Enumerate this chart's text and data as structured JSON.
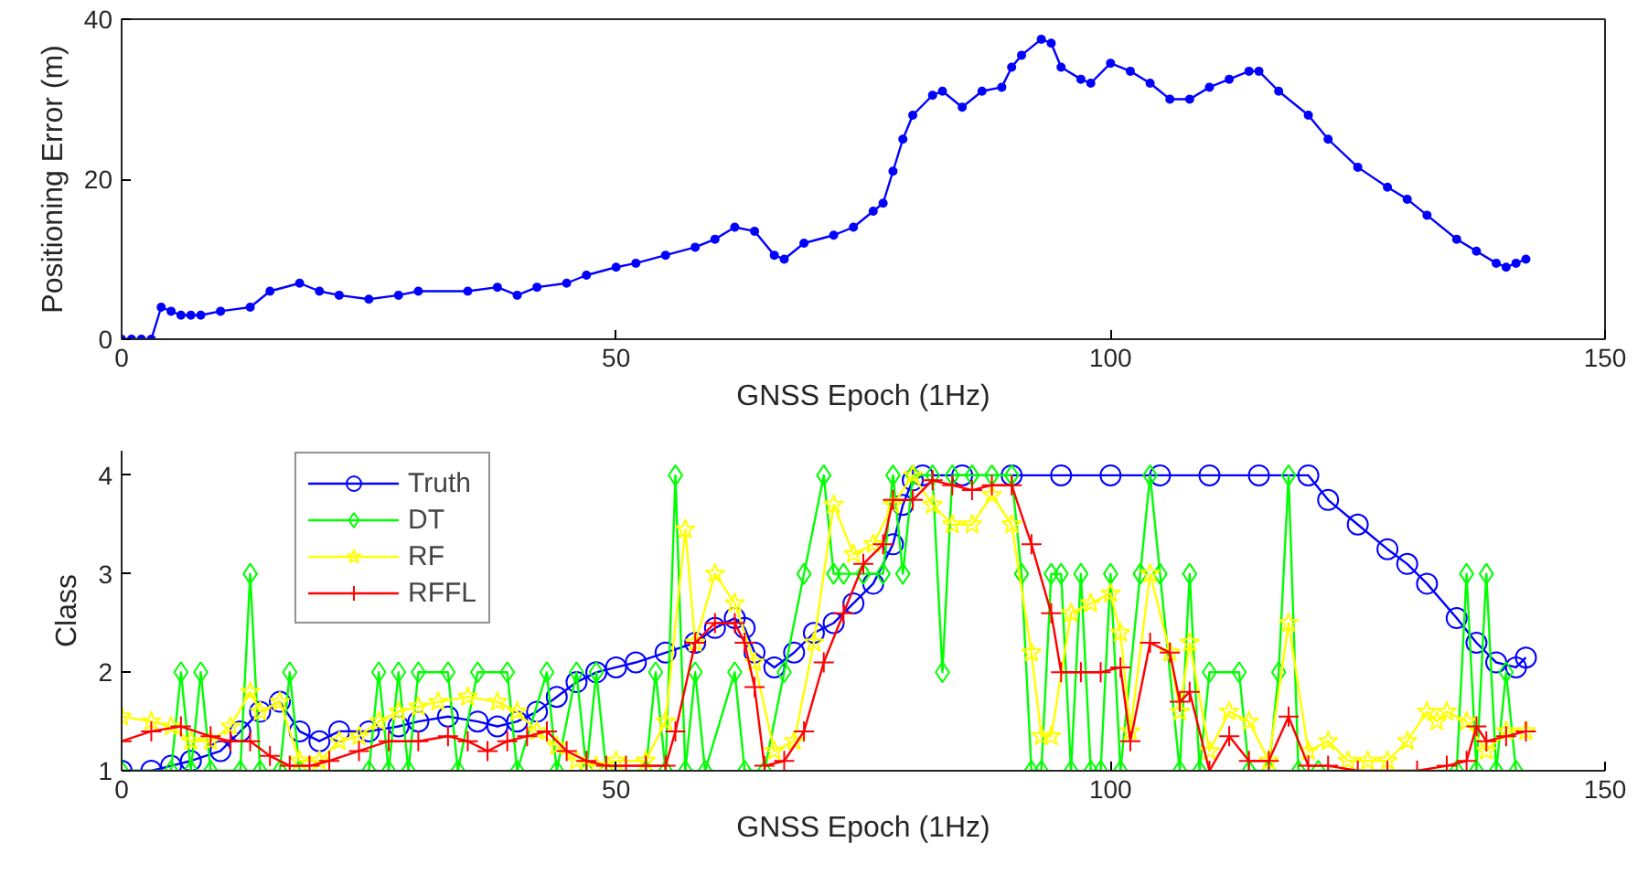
{
  "chart_data": [
    {
      "type": "line",
      "xlabel": "GNSS Epoch (1Hz)",
      "ylabel": "Positioning Error (m)",
      "xlim": [
        0,
        150
      ],
      "ylim": [
        0,
        40
      ],
      "xticks": [
        0,
        50,
        100,
        150
      ],
      "yticks": [
        0,
        20,
        40
      ],
      "grid": false,
      "marker": "circle",
      "series": [
        {
          "color": "#0000ff",
          "x": [
            0,
            1,
            2,
            3,
            4,
            5,
            6,
            7,
            8,
            10,
            13,
            15,
            18,
            20,
            22,
            25,
            28,
            30,
            35,
            38,
            40,
            42,
            45,
            47,
            50,
            52,
            55,
            58,
            60,
            62,
            64,
            66,
            67,
            69,
            72,
            74,
            76,
            77,
            78,
            79,
            80,
            82,
            83,
            85,
            87,
            89,
            90,
            91,
            93,
            94,
            95,
            97,
            98,
            100,
            102,
            104,
            106,
            108,
            110,
            112,
            114,
            115,
            117,
            120,
            122,
            125,
            128,
            130,
            132,
            135,
            137,
            139,
            140,
            141,
            142
          ],
          "values": [
            0,
            0,
            0,
            0,
            4,
            3.5,
            3,
            3,
            3,
            3.5,
            4,
            6,
            7,
            6,
            5.5,
            5,
            5.5,
            6,
            6,
            6.5,
            5.5,
            6.5,
            7,
            8,
            9,
            9.5,
            10.5,
            11.5,
            12.5,
            14,
            13.5,
            10.5,
            10,
            12,
            13,
            14,
            16,
            17,
            21,
            25,
            28,
            30.5,
            31,
            29,
            31,
            31.5,
            34,
            35.5,
            37.5,
            37,
            34,
            32.5,
            32,
            34.5,
            33.5,
            32,
            30,
            30,
            31.5,
            32.5,
            33.5,
            33.5,
            31,
            28,
            25,
            21.5,
            19,
            17.5,
            15.5,
            12.5,
            11,
            9.5,
            9,
            9.5,
            10
          ]
        }
      ]
    },
    {
      "type": "line",
      "xlabel": "GNSS Epoch (1Hz)",
      "ylabel": "Class",
      "xlim": [
        0,
        150
      ],
      "ylim": [
        1,
        4.25
      ],
      "xticks": [
        0,
        50,
        100,
        150
      ],
      "yticks": [
        1,
        2,
        3,
        4
      ],
      "grid": false,
      "legend": "top left",
      "series": [
        {
          "name": "Truth",
          "color": "#0000ff",
          "marker": "circle",
          "x": [
            0,
            3,
            5,
            7,
            10,
            12,
            14,
            16,
            18,
            20,
            22,
            25,
            28,
            30,
            33,
            36,
            38,
            40,
            42,
            44,
            46,
            48,
            50,
            52,
            55,
            58,
            60,
            62,
            63,
            64,
            66,
            68,
            70,
            72,
            74,
            76,
            78,
            79,
            80,
            81,
            85,
            90,
            95,
            100,
            105,
            110,
            115,
            120,
            122,
            125,
            128,
            130,
            132,
            135,
            137,
            139,
            141,
            142
          ],
          "values": [
            1.0,
            1.0,
            1.05,
            1.1,
            1.2,
            1.4,
            1.6,
            1.7,
            1.4,
            1.3,
            1.4,
            1.4,
            1.45,
            1.5,
            1.55,
            1.5,
            1.45,
            1.5,
            1.6,
            1.75,
            1.9,
            2.0,
            2.05,
            2.1,
            2.2,
            2.3,
            2.45,
            2.55,
            2.45,
            2.2,
            2.05,
            2.2,
            2.4,
            2.5,
            2.7,
            2.9,
            3.3,
            3.7,
            3.95,
            4,
            4,
            4,
            4,
            4,
            4,
            4,
            4,
            4,
            3.75,
            3.5,
            3.25,
            3.1,
            2.9,
            2.55,
            2.3,
            2.1,
            2.05,
            2.15
          ]
        },
        {
          "name": "DT",
          "color": "#00ff00",
          "marker": "diamond",
          "x": [
            0,
            5,
            6,
            7,
            8,
            9,
            12,
            13,
            14,
            16,
            17,
            18,
            25,
            26,
            27,
            28,
            29,
            30,
            33,
            34,
            36,
            39,
            40,
            43,
            44,
            46,
            47,
            48,
            49,
            53,
            54,
            55,
            56,
            57,
            58,
            59,
            62,
            63,
            65,
            67,
            69,
            71,
            72,
            73,
            75,
            77,
            78,
            79,
            80,
            82,
            83,
            84,
            86,
            88,
            90,
            91,
            92,
            93,
            94,
            95,
            96,
            97,
            98,
            99,
            100,
            101,
            103,
            104,
            105,
            107,
            108,
            109,
            110,
            113,
            114,
            116,
            117,
            118,
            119,
            121,
            135,
            136,
            137,
            138,
            139,
            140,
            141
          ],
          "values": [
            1,
            1,
            2,
            1,
            2,
            1,
            1,
            3,
            1,
            1,
            2,
            1,
            1,
            2,
            1,
            2,
            1,
            2,
            2,
            1,
            2,
            2,
            1,
            2,
            1,
            2,
            1,
            2,
            1,
            1,
            2,
            1,
            4,
            1,
            2,
            1,
            2,
            1,
            1,
            2,
            3,
            4,
            3,
            3,
            3,
            3,
            4,
            3,
            4,
            4,
            2,
            4,
            4,
            4,
            4,
            3,
            1,
            1,
            3,
            3,
            1,
            3,
            1,
            1,
            3,
            1,
            3,
            4,
            3,
            1,
            3,
            1,
            2,
            2,
            1,
            1,
            2,
            4,
            1,
            1,
            1,
            3,
            1,
            3,
            1,
            2,
            1
          ]
        },
        {
          "name": "RF",
          "color": "#ffff00",
          "marker": "star",
          "x": [
            0,
            3,
            5,
            7,
            9,
            11,
            13,
            14,
            16,
            18,
            20,
            22,
            24,
            26,
            28,
            30,
            32,
            35,
            38,
            40,
            42,
            44,
            46,
            48,
            50,
            53,
            55,
            57,
            58,
            60,
            62,
            64,
            66,
            68,
            70,
            72,
            74,
            76,
            78,
            80,
            82,
            84,
            86,
            88,
            90,
            92,
            93,
            94,
            96,
            98,
            100,
            101,
            102,
            104,
            106,
            107,
            108,
            110,
            112,
            114,
            116,
            118,
            120,
            122,
            124,
            126,
            128,
            130,
            132,
            133,
            134,
            136,
            138,
            140,
            142
          ],
          "values": [
            1.55,
            1.5,
            1.45,
            1.3,
            1.3,
            1.45,
            1.8,
            1.6,
            1.7,
            1.1,
            1.1,
            1.3,
            1.35,
            1.5,
            1.6,
            1.65,
            1.7,
            1.75,
            1.7,
            1.6,
            1.4,
            1.25,
            1.1,
            1.05,
            1.1,
            1.1,
            1.5,
            3.45,
            2.3,
            3.0,
            2.7,
            2.1,
            1.2,
            1.3,
            2.3,
            3.7,
            3.2,
            3.3,
            3.7,
            4.0,
            3.7,
            3.5,
            3.5,
            3.8,
            3.5,
            2.2,
            1.35,
            1.35,
            2.6,
            2.7,
            2.8,
            2.4,
            1.4,
            3.0,
            2.2,
            1.6,
            2.3,
            1.2,
            1.6,
            1.5,
            1.1,
            2.5,
            1.2,
            1.3,
            1.1,
            1.1,
            1.1,
            1.3,
            1.6,
            1.5,
            1.6,
            1.5,
            1.2,
            1.4,
            1.4
          ]
        },
        {
          "name": "RFFL",
          "color": "#ff0000",
          "marker": "cross",
          "x": [
            0,
            3,
            6,
            9,
            11,
            13,
            15,
            17,
            19,
            21,
            24,
            27,
            30,
            33,
            35,
            37,
            39,
            41,
            43,
            45,
            47,
            49,
            51,
            53,
            55,
            56,
            58,
            60,
            62,
            63,
            64,
            65,
            67,
            69,
            71,
            73,
            75,
            77,
            78,
            80,
            82,
            84,
            86,
            88,
            90,
            92,
            94,
            95,
            97,
            99,
            101,
            102,
            104,
            106,
            107,
            108,
            110,
            112,
            114,
            116,
            118,
            120,
            122,
            125,
            128,
            131,
            134,
            136,
            137,
            138,
            140,
            142
          ],
          "values": [
            1.3,
            1.4,
            1.45,
            1.35,
            1.3,
            1.3,
            1.15,
            1.05,
            1.05,
            1.1,
            1.2,
            1.3,
            1.3,
            1.35,
            1.3,
            1.2,
            1.3,
            1.35,
            1.4,
            1.2,
            1.1,
            1.05,
            1.05,
            1.05,
            1.05,
            1.4,
            2.3,
            2.5,
            2.5,
            2.3,
            1.85,
            1.05,
            1.1,
            1.4,
            2.1,
            2.6,
            3.1,
            3.3,
            3.75,
            3.75,
            3.95,
            3.9,
            3.85,
            3.9,
            3.9,
            3.3,
            2.6,
            2.0,
            2.0,
            2.0,
            2.05,
            1.3,
            2.3,
            2.2,
            1.7,
            1.8,
            1.0,
            1.35,
            1.1,
            1.1,
            1.55,
            1.05,
            1.05,
            1.0,
            1.0,
            1.0,
            1.05,
            1.1,
            1.45,
            1.3,
            1.35,
            1.4
          ]
        }
      ]
    }
  ]
}
